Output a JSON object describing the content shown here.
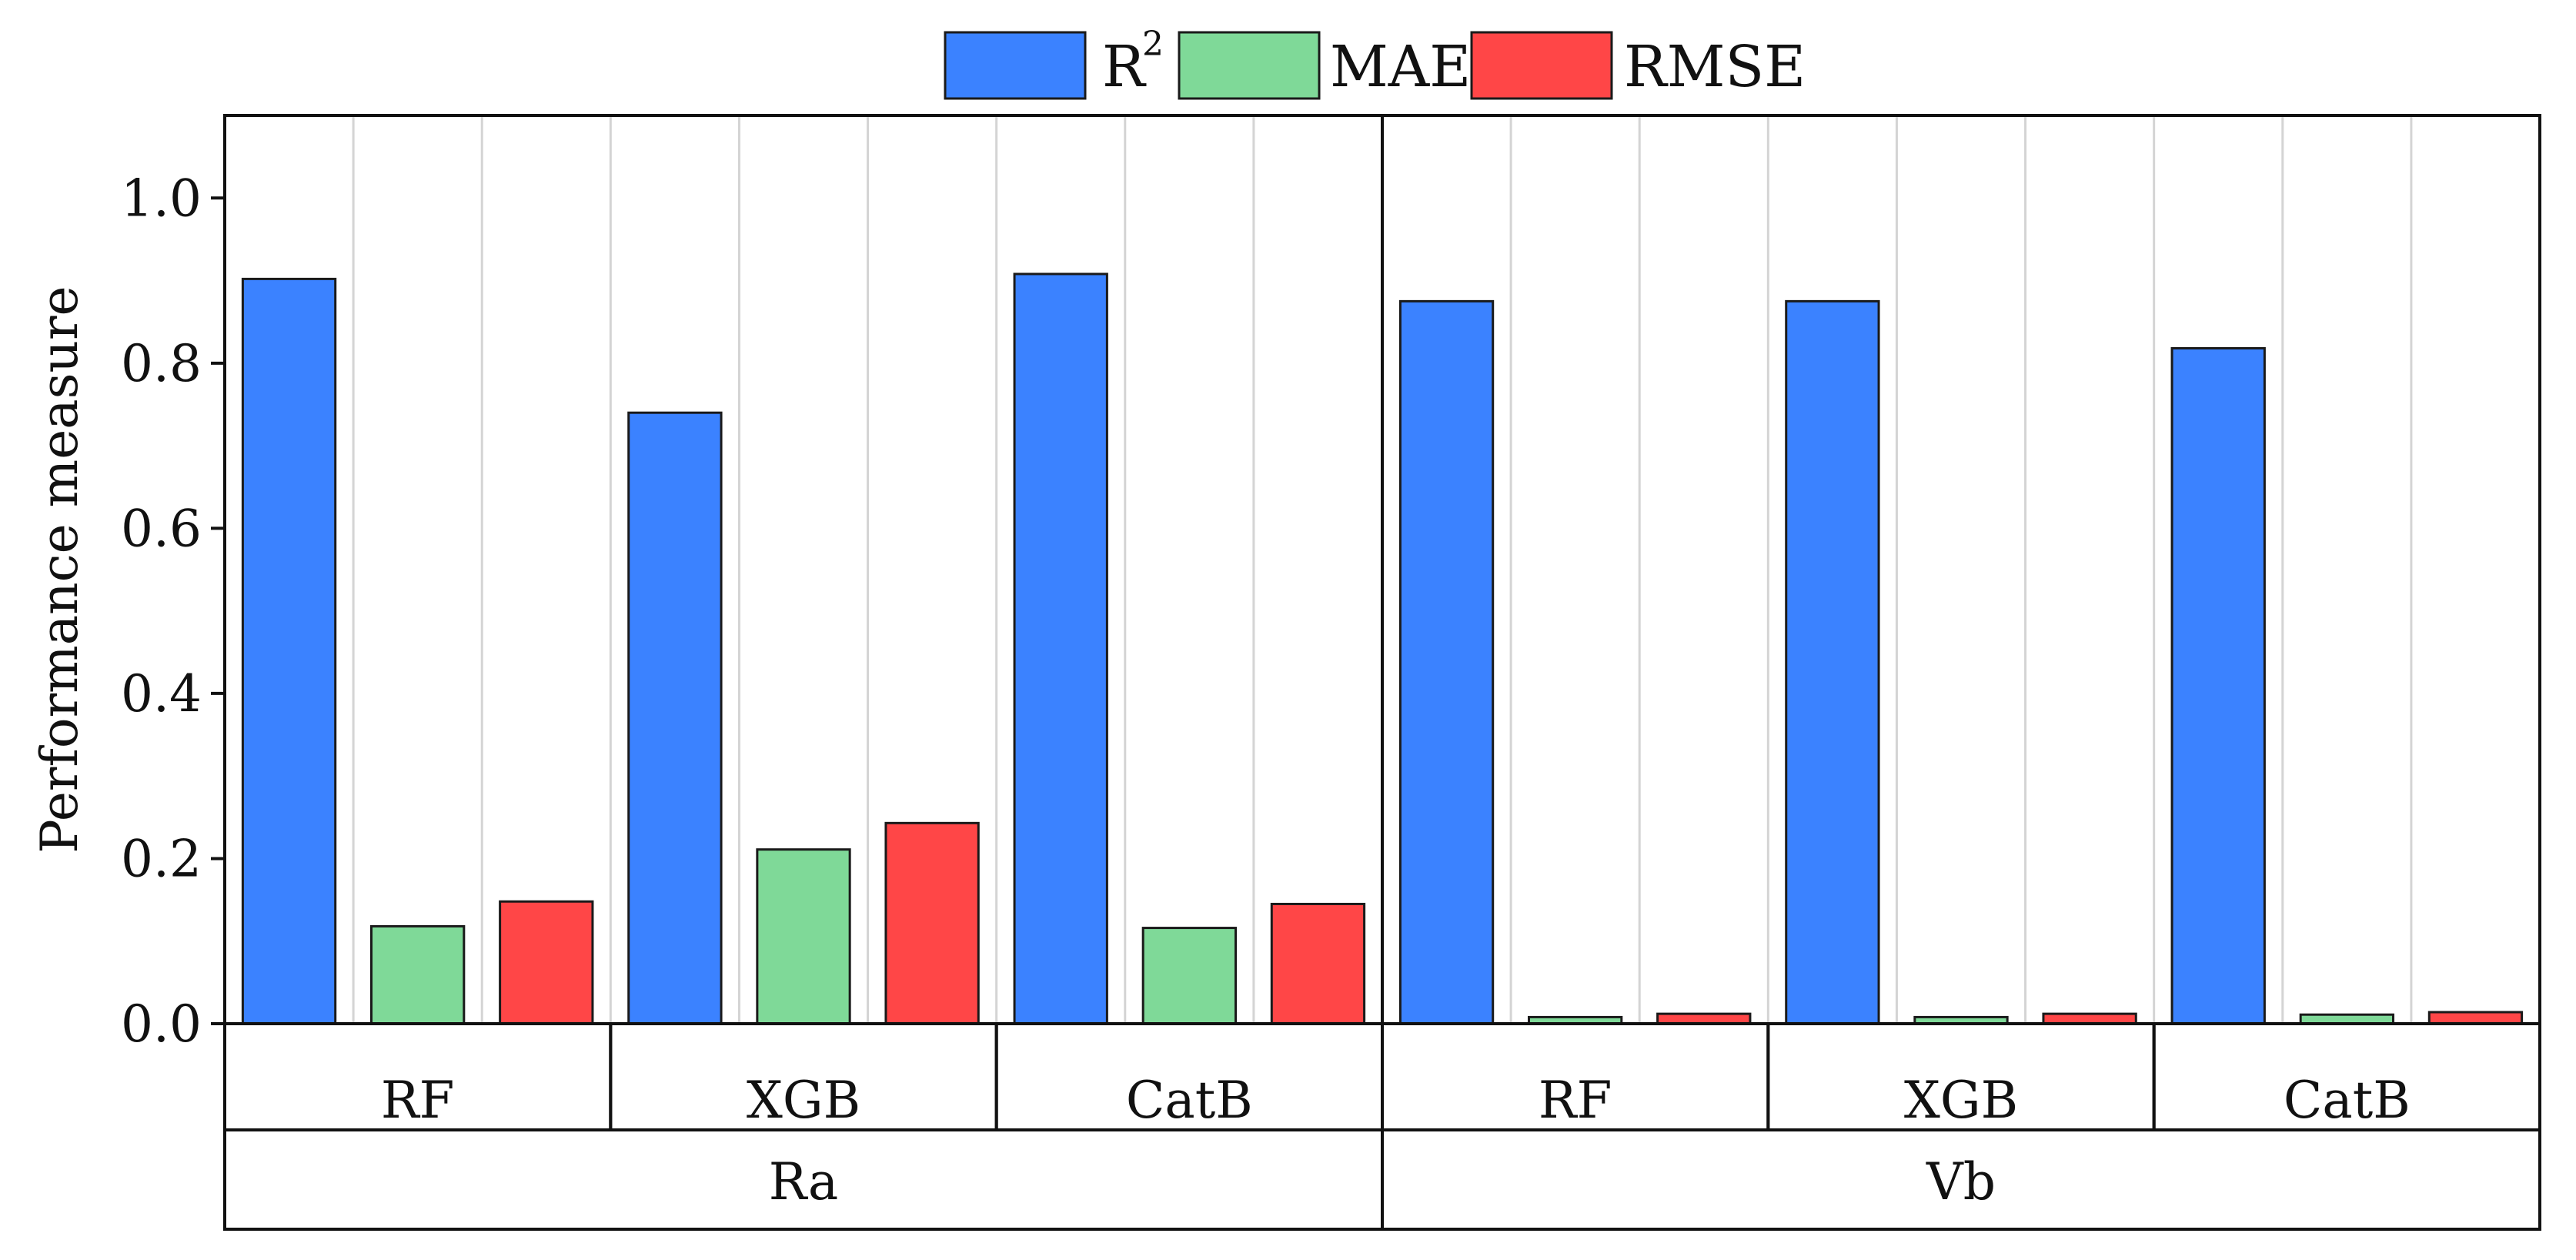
{
  "chart_data": {
    "type": "bar",
    "ylabel": "Performance measure",
    "ylim": [
      0,
      1.1
    ],
    "yticks": [
      "0.0",
      "0.2",
      "0.4",
      "0.6",
      "0.8",
      "1.0"
    ],
    "groups": [
      "Ra",
      "Vb"
    ],
    "models": [
      "RF",
      "XGB",
      "CatB"
    ],
    "legend_position": "top-center",
    "series": [
      {
        "name": "R",
        "superscript": "2",
        "color": "#3b82ff",
        "values": [
          0.902,
          0.74,
          0.908,
          0.875,
          0.875,
          0.818
        ]
      },
      {
        "name": "MAE",
        "color": "#7fd998",
        "values": [
          0.118,
          0.211,
          0.116,
          0.008,
          0.008,
          0.011
        ]
      },
      {
        "name": "RMSE",
        "color": "#ff4647",
        "values": [
          0.148,
          0.243,
          0.145,
          0.012,
          0.012,
          0.014
        ]
      }
    ]
  }
}
